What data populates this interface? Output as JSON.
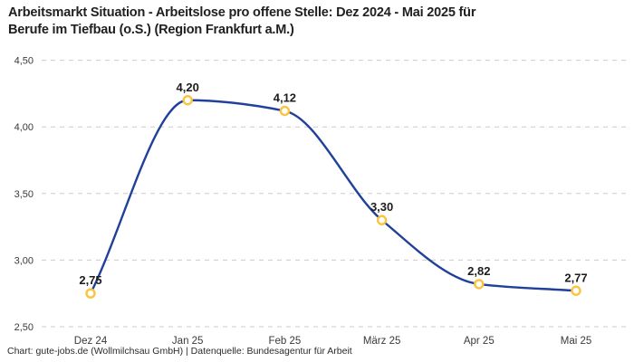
{
  "title": {
    "line1": "Arbeitsmarkt Situation - Arbeitslose pro offene Stelle: Dez 2024 - Mai 2025 für",
    "line2": "Berufe im Tiefbau (o.S.) (Region Frankfurt a.M.)"
  },
  "footer": {
    "text": "Chart: gute-jobs.de (Wollmilchsau GmbH) | Datenquelle: Bundesagentur für Arbeit"
  },
  "colors": {
    "line": "#21409a",
    "marker_stroke": "#fcc33c",
    "marker_fill": "#ffffff",
    "gridline": "#cbcbcb",
    "title_text": "#1f1f1f",
    "axis_text": "#3a3a3a",
    "label_text": "#1c1c1c"
  },
  "chart_data": {
    "type": "line",
    "title": "Arbeitsmarkt Situation - Arbeitslose pro offene Stelle: Dez 2024 - Mai 2025 für Berufe im Tiefbau (o.S.) (Region Frankfurt a.M.)",
    "categories": [
      "Dez 24",
      "Jan 25",
      "Feb 25",
      "März 25",
      "Apr 25",
      "Mai 25"
    ],
    "series": [
      {
        "name": "Arbeitslose pro offene Stelle",
        "values": [
          2.75,
          4.2,
          4.12,
          3.3,
          2.82,
          2.77
        ]
      }
    ],
    "point_labels": [
      "2,75",
      "4,20",
      "4,12",
      "3,30",
      "2,82",
      "2,77"
    ],
    "y_ticks": [
      {
        "value": 2.5,
        "label": "2,50"
      },
      {
        "value": 3.0,
        "label": "3,00"
      },
      {
        "value": 3.5,
        "label": "3,50"
      },
      {
        "value": 4.0,
        "label": "4,00"
      },
      {
        "value": 4.5,
        "label": "4,50"
      }
    ],
    "ylim": [
      2.5,
      4.5
    ],
    "xlabel": "",
    "ylabel": "",
    "grid": "horizontal-dashed",
    "legend": "none",
    "curve": "smooth-monotone"
  }
}
